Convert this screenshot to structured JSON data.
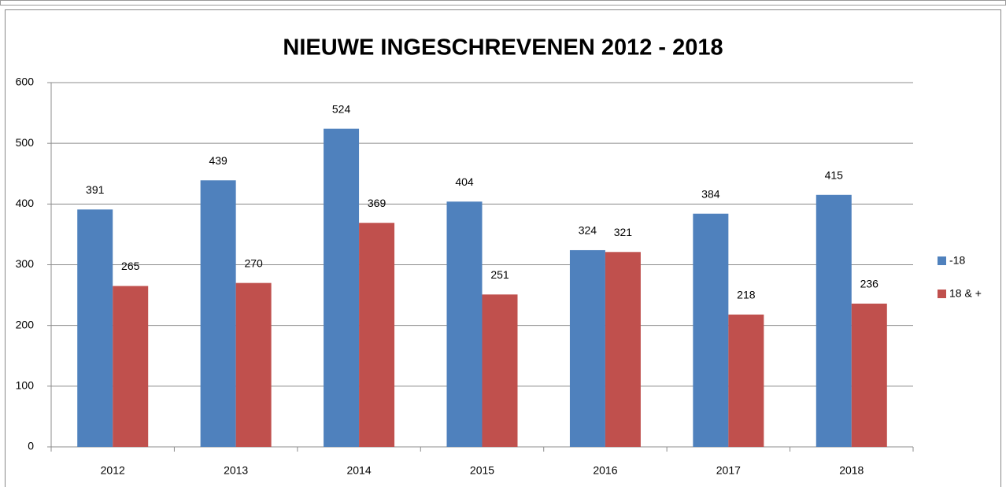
{
  "chart_data": {
    "type": "bar",
    "title": "NIEUWE  INGESCHREVENEN  2012 - 2018",
    "categories": [
      "2012",
      "2013",
      "2014",
      "2015",
      "2016",
      "2017",
      "2018"
    ],
    "series": [
      {
        "name": "-18",
        "color": "#4f81bd",
        "values": [
          391,
          439,
          524,
          404,
          324,
          384,
          415
        ]
      },
      {
        "name": "18 & +",
        "color": "#c0504d",
        "values": [
          265,
          270,
          369,
          251,
          321,
          218,
          236
        ]
      }
    ],
    "ylim": [
      0,
      600
    ],
    "yticks": [
      0,
      100,
      200,
      300,
      400,
      500,
      600
    ],
    "grid": true,
    "legend": "right"
  }
}
